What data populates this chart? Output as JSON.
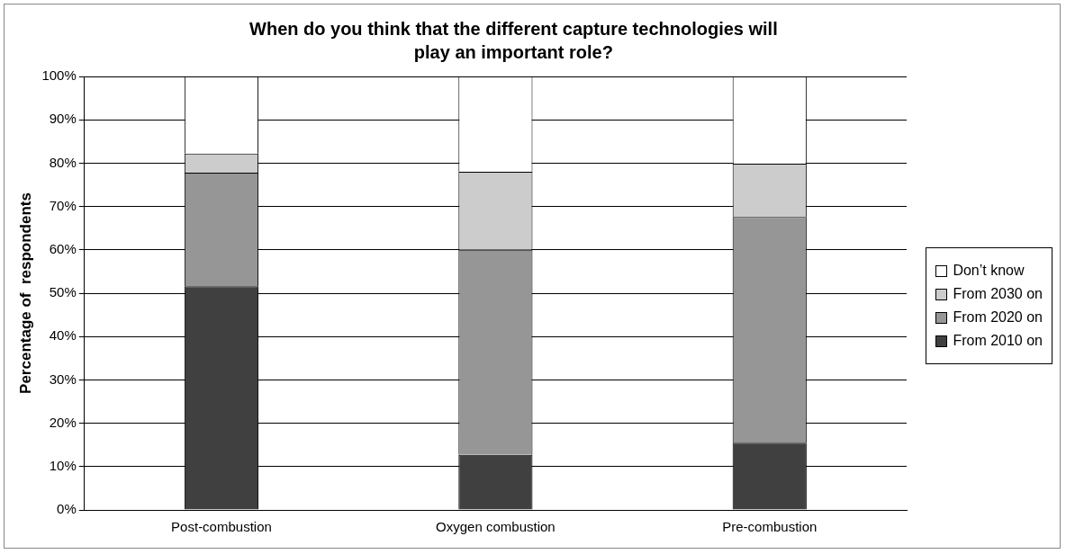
{
  "chart_data": {
    "type": "bar",
    "title": "When do you think that the different capture technologies will play an important role?",
    "ylabel": "Percentage of  respondents",
    "categories": [
      "Post-combustion",
      "Oxygen combustion",
      "Pre-combustion"
    ],
    "stacked": true,
    "series": [
      {
        "name": "From 2010 on",
        "color": "#404040",
        "values": [
          51.6,
          12.7,
          15.5
        ]
      },
      {
        "name": "From 2020 on",
        "color": "#969696",
        "values": [
          26.2,
          47.3,
          52.1
        ]
      },
      {
        "name": "From 2030 on",
        "color": "#cccccc",
        "values": [
          4.4,
          18,
          12.3
        ]
      },
      {
        "name": "Don’t know",
        "color": "#ffffff",
        "values": [
          17.8,
          22,
          20.1
        ]
      }
    ],
    "ylim": [
      0,
      100
    ],
    "yticks": [
      {
        "value": 0,
        "label": "0%"
      },
      {
        "value": 10,
        "label": "10%"
      },
      {
        "value": 20,
        "label": "20%"
      },
      {
        "value": 30,
        "label": "30%"
      },
      {
        "value": 40,
        "label": "40%"
      },
      {
        "value": 50,
        "label": "50%"
      },
      {
        "value": 60,
        "label": "60%"
      },
      {
        "value": 70,
        "label": "70%"
      },
      {
        "value": 80,
        "label": "80%"
      },
      {
        "value": 90,
        "label": "90%"
      },
      {
        "value": 100,
        "label": "100%"
      }
    ],
    "grid": "y",
    "legend": "right"
  }
}
